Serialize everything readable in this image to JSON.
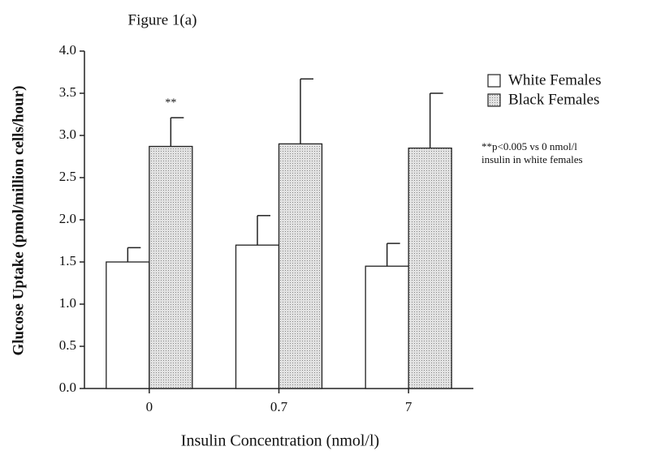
{
  "chart_data": {
    "type": "bar",
    "title": "Figure 1(a)",
    "x_label": "Insulin Concentration (nmol/l)",
    "y_label": "Glucose Uptake (pmol/million cells/hour)",
    "categories": [
      "0",
      "0.7",
      "7"
    ],
    "series": [
      {
        "name": "White Females",
        "color": "#ffffff",
        "values": [
          1.5,
          1.7,
          1.45
        ],
        "errors": [
          0.17,
          0.35,
          0.27
        ]
      },
      {
        "name": "Black Females",
        "color": "#cfcfcf",
        "values": [
          2.87,
          2.9,
          2.85
        ],
        "errors": [
          0.34,
          0.77,
          0.65
        ]
      }
    ],
    "ylim": [
      0,
      4
    ],
    "yticks": [
      {
        "value": 0,
        "label": "0.0"
      },
      0.5,
      {
        "value": 1,
        "label": "1.0"
      },
      1.5,
      {
        "value": 2,
        "label": "2.0"
      },
      2.5,
      {
        "value": 3,
        "label": "3.0"
      },
      3.5,
      {
        "value": 4,
        "label": "4.0"
      }
    ],
    "annotations": [
      "**"
    ],
    "footnote": [
      "**p<0.005 vs 0 nmol/l",
      "insulin in white females"
    ],
    "legend": "right"
  }
}
